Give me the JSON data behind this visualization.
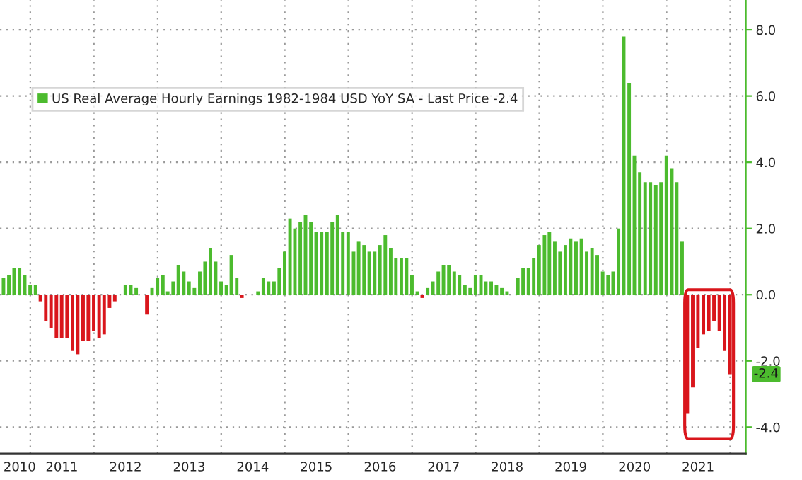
{
  "chart_data": {
    "type": "bar",
    "x": [
      "2010-07-31",
      "2010-08-31",
      "2010-09-30",
      "2010-10-31",
      "2010-11-30",
      "2010-12-31",
      "2011-01-31",
      "2011-02-28",
      "2011-03-31",
      "2011-04-30",
      "2011-05-31",
      "2011-06-30",
      "2011-07-31",
      "2011-08-31",
      "2011-09-30",
      "2011-10-31",
      "2011-11-30",
      "2011-12-31",
      "2012-01-31",
      "2012-02-29",
      "2012-03-31",
      "2012-04-30",
      "2012-05-31",
      "2012-06-30",
      "2012-07-31",
      "2012-08-31",
      "2012-09-30",
      "2012-10-31",
      "2012-11-30",
      "2012-12-31",
      "2013-01-31",
      "2013-02-28",
      "2013-03-31",
      "2013-04-30",
      "2013-05-31",
      "2013-06-30",
      "2013-07-31",
      "2013-08-31",
      "2013-09-30",
      "2013-10-31",
      "2013-11-30",
      "2013-12-31",
      "2014-01-31",
      "2014-02-28",
      "2014-03-31",
      "2014-04-30",
      "2014-05-31",
      "2014-06-30",
      "2014-07-31",
      "2014-08-31",
      "2014-09-30",
      "2014-10-31",
      "2014-11-30",
      "2014-12-31",
      "2015-01-31",
      "2015-02-28",
      "2015-03-31",
      "2015-04-30",
      "2015-05-31",
      "2015-06-30",
      "2015-07-31",
      "2015-08-31",
      "2015-09-30",
      "2015-10-31",
      "2015-11-30",
      "2015-12-31",
      "2016-01-31",
      "2016-02-29",
      "2016-03-31",
      "2016-04-30",
      "2016-05-31",
      "2016-06-30",
      "2016-07-31",
      "2016-08-31",
      "2016-09-30",
      "2016-10-31",
      "2016-11-30",
      "2016-12-31",
      "2017-01-31",
      "2017-02-28",
      "2017-03-31",
      "2017-04-30",
      "2017-05-31",
      "2017-06-30",
      "2017-07-31",
      "2017-08-31",
      "2017-09-30",
      "2017-10-31",
      "2017-11-30",
      "2017-12-31",
      "2018-01-31",
      "2018-02-28",
      "2018-03-31",
      "2018-04-30",
      "2018-05-31",
      "2018-06-30",
      "2018-07-31",
      "2018-08-31",
      "2018-09-30",
      "2018-10-31",
      "2018-11-30",
      "2018-12-31",
      "2019-01-31",
      "2019-02-28",
      "2019-03-31",
      "2019-04-30",
      "2019-05-31",
      "2019-06-30",
      "2019-07-31",
      "2019-08-31",
      "2019-09-30",
      "2019-10-31",
      "2019-11-30",
      "2019-12-31",
      "2020-01-31",
      "2020-02-29",
      "2020-03-31",
      "2020-04-30",
      "2020-05-31",
      "2020-06-30",
      "2020-07-31",
      "2020-08-31",
      "2020-09-30",
      "2020-10-31",
      "2020-11-30",
      "2020-12-31",
      "2021-01-31",
      "2021-02-28",
      "2021-03-31",
      "2021-04-30",
      "2021-05-31",
      "2021-06-30",
      "2021-07-31",
      "2021-08-31",
      "2021-09-30",
      "2021-10-31",
      "2021-11-30",
      "2021-12-31"
    ],
    "series": [
      {
        "name": "US Real Average Hourly Earnings 1982-1984 USD YoY SA - Last Price -2.4",
        "color": "#4cbb2e",
        "values": [
          0.5,
          0.6,
          0.8,
          0.8,
          0.6,
          0.3,
          0.3,
          -0.2,
          -0.8,
          -1.0,
          -1.3,
          -1.3,
          -1.3,
          -1.7,
          -1.8,
          -1.4,
          -1.4,
          -1.1,
          -1.3,
          -1.2,
          -0.4,
          -0.2,
          0.0,
          0.3,
          0.3,
          0.2,
          0.0,
          -0.6,
          0.2,
          0.5,
          0.6,
          0.1,
          0.4,
          0.9,
          0.7,
          0.4,
          0.2,
          0.7,
          1.0,
          1.4,
          1.0,
          0.4,
          0.3,
          1.2,
          0.5,
          -0.1,
          0.0,
          0.0,
          0.1,
          0.5,
          0.4,
          0.4,
          0.8,
          1.3,
          2.3,
          2.0,
          2.2,
          2.4,
          2.2,
          1.9,
          1.9,
          1.9,
          2.2,
          2.4,
          1.9,
          1.9,
          1.3,
          1.6,
          1.5,
          1.3,
          1.3,
          1.5,
          1.8,
          1.4,
          1.1,
          1.1,
          1.1,
          0.6,
          0.1,
          -0.1,
          0.2,
          0.4,
          0.7,
          0.9,
          0.9,
          0.7,
          0.6,
          0.3,
          0.2,
          0.6,
          0.6,
          0.4,
          0.4,
          0.3,
          0.2,
          0.1,
          0.0,
          0.5,
          0.8,
          0.8,
          1.1,
          1.5,
          1.8,
          1.9,
          1.6,
          1.3,
          1.5,
          1.7,
          1.6,
          1.7,
          1.3,
          1.4,
          1.2,
          0.7,
          0.6,
          0.7,
          2.0,
          7.8,
          6.4,
          4.2,
          3.7,
          3.4,
          3.4,
          3.3,
          3.4,
          4.2,
          3.8,
          3.4,
          1.6,
          -3.6,
          -2.8,
          -1.6,
          -1.2,
          -1.1,
          -0.8,
          -1.1,
          -1.7,
          -2.4
        ],
        "colors": [
          "#4cbb2e",
          "#4cbb2e",
          "#4cbb2e",
          "#4cbb2e",
          "#4cbb2e",
          "#4cbb2e",
          "#4cbb2e",
          "#d9161c",
          "#d9161c",
          "#d9161c",
          "#d9161c",
          "#d9161c",
          "#d9161c",
          "#d9161c",
          "#d9161c",
          "#d9161c",
          "#d9161c",
          "#d9161c",
          "#d9161c",
          "#d9161c",
          "#d9161c",
          "#d9161c",
          "#4cbb2e",
          "#4cbb2e",
          "#4cbb2e",
          "#4cbb2e",
          "#4cbb2e",
          "#d9161c",
          "#4cbb2e",
          "#4cbb2e",
          "#4cbb2e",
          "#4cbb2e",
          "#4cbb2e",
          "#4cbb2e",
          "#4cbb2e",
          "#4cbb2e",
          "#4cbb2e",
          "#4cbb2e",
          "#4cbb2e",
          "#4cbb2e",
          "#4cbb2e",
          "#4cbb2e",
          "#4cbb2e",
          "#4cbb2e",
          "#4cbb2e",
          "#d9161c",
          "#4cbb2e",
          "#4cbb2e",
          "#4cbb2e",
          "#4cbb2e",
          "#4cbb2e",
          "#4cbb2e",
          "#4cbb2e",
          "#4cbb2e",
          "#4cbb2e",
          "#4cbb2e",
          "#4cbb2e",
          "#4cbb2e",
          "#4cbb2e",
          "#4cbb2e",
          "#4cbb2e",
          "#4cbb2e",
          "#4cbb2e",
          "#4cbb2e",
          "#4cbb2e",
          "#4cbb2e",
          "#4cbb2e",
          "#4cbb2e",
          "#4cbb2e",
          "#4cbb2e",
          "#4cbb2e",
          "#4cbb2e",
          "#4cbb2e",
          "#4cbb2e",
          "#4cbb2e",
          "#4cbb2e",
          "#4cbb2e",
          "#4cbb2e",
          "#4cbb2e",
          "#d9161c",
          "#4cbb2e",
          "#4cbb2e",
          "#4cbb2e",
          "#4cbb2e",
          "#4cbb2e",
          "#4cbb2e",
          "#4cbb2e",
          "#4cbb2e",
          "#4cbb2e",
          "#4cbb2e",
          "#4cbb2e",
          "#4cbb2e",
          "#4cbb2e",
          "#4cbb2e",
          "#4cbb2e",
          "#4cbb2e",
          "#4cbb2e",
          "#4cbb2e",
          "#4cbb2e",
          "#4cbb2e",
          "#4cbb2e",
          "#4cbb2e",
          "#4cbb2e",
          "#4cbb2e",
          "#4cbb2e",
          "#4cbb2e",
          "#4cbb2e",
          "#4cbb2e",
          "#4cbb2e",
          "#4cbb2e",
          "#4cbb2e",
          "#4cbb2e",
          "#4cbb2e",
          "#4cbb2e",
          "#4cbb2e",
          "#4cbb2e",
          "#4cbb2e",
          "#4cbb2e",
          "#4cbb2e",
          "#4cbb2e",
          "#4cbb2e",
          "#4cbb2e",
          "#4cbb2e",
          "#4cbb2e",
          "#4cbb2e",
          "#4cbb2e",
          "#4cbb2e",
          "#4cbb2e",
          "#4cbb2e",
          "#d9161c",
          "#d9161c",
          "#d9161c",
          "#d9161c",
          "#d9161c",
          "#d9161c",
          "#d9161c",
          "#d9161c",
          "#d9161c"
        ]
      }
    ],
    "xlim": [
      "2010-07-11",
      "2022-04-01"
    ],
    "xticks": [
      {
        "value": "2010-11-01",
        "label": "2010"
      },
      {
        "value": "2011-01-01",
        "label": null
      },
      {
        "value": "2011-07-01",
        "label": "2011"
      },
      {
        "value": "2012-01-01",
        "label": null
      },
      {
        "value": "2012-07-01",
        "label": "2012"
      },
      {
        "value": "2013-01-01",
        "label": null
      },
      {
        "value": "2013-07-01",
        "label": "2013"
      },
      {
        "value": "2014-01-01",
        "label": null
      },
      {
        "value": "2014-07-01",
        "label": "2014"
      },
      {
        "value": "2015-01-01",
        "label": null
      },
      {
        "value": "2015-07-01",
        "label": "2015"
      },
      {
        "value": "2016-01-01",
        "label": null
      },
      {
        "value": "2016-07-01",
        "label": "2016"
      },
      {
        "value": "2017-01-01",
        "label": null
      },
      {
        "value": "2017-07-01",
        "label": "2017"
      },
      {
        "value": "2018-01-01",
        "label": null
      },
      {
        "value": "2018-07-01",
        "label": "2018"
      },
      {
        "value": "2019-01-01",
        "label": null
      },
      {
        "value": "2019-07-01",
        "label": "2019"
      },
      {
        "value": "2020-01-01",
        "label": null
      },
      {
        "value": "2020-07-01",
        "label": "2020"
      },
      {
        "value": "2021-01-01",
        "label": null
      },
      {
        "value": "2021-07-01",
        "label": "2021"
      },
      {
        "value": "2022-01-01",
        "label": null
      }
    ],
    "ylim": [
      -4.8,
      8.9
    ],
    "yticks": [
      {
        "value": -4,
        "label": "-4.0"
      },
      {
        "value": -2,
        "label": "-2.0"
      },
      {
        "value": 0,
        "label": "0.0"
      },
      {
        "value": 2,
        "label": "2.0"
      },
      {
        "value": 4,
        "label": "4.0"
      },
      {
        "value": 6,
        "label": "6.0"
      },
      {
        "value": 8,
        "label": "8.0"
      }
    ],
    "annotations": [
      "-2.4"
    ],
    "grid": true,
    "legend": "top left"
  }
}
